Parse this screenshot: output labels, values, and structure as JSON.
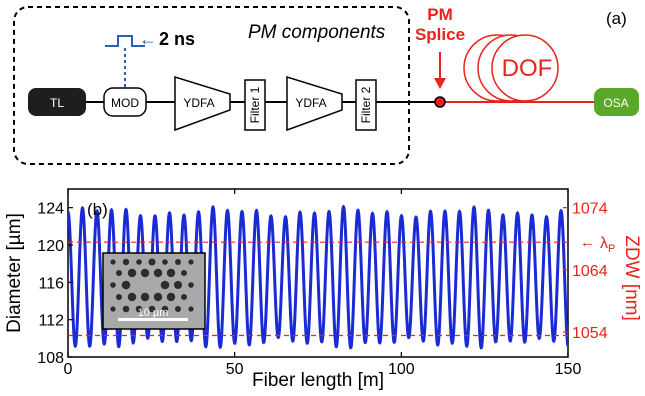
{
  "colors": {
    "black": "#000000",
    "red": "#e8231d",
    "blue": "#1a2bd6",
    "pulse_blue": "#2f5fb5",
    "dark_box": "#1e1e1e",
    "green": "#5aa829",
    "white": "#ffffff"
  },
  "setup": {
    "panel_label": "(a)",
    "group_label": "PM components",
    "pulse_label": "2 ns",
    "splice_label_line1": "PM",
    "splice_label_line2": "Splice",
    "blocks": {
      "tl": "TL",
      "mod": "MOD",
      "ydfa1": "YDFA",
      "filter1": "Filter 1",
      "ydfa2": "YDFA",
      "filter2": "Filter 2",
      "dof": "DOF",
      "osa": "OSA"
    }
  },
  "plot": {
    "panel_label": "(b)",
    "xlabel": "Fiber length [m]",
    "ylabel": "Diameter [µm]",
    "ylabel_right": "ZDW [nm]",
    "lambda_label": "λ",
    "lambda_sub": "P",
    "inset_scale": "10 µm"
  },
  "chart_data": {
    "type": "line",
    "xlabel": "Fiber length [m]",
    "ylabel": "Diameter [µm]",
    "y2label": "ZDW [nm]",
    "xlim": [
      0,
      150
    ],
    "ylim": [
      108,
      126
    ],
    "y2lim": [
      1050,
      1077
    ],
    "xticks": [
      0,
      50,
      100,
      150
    ],
    "yticks": [
      108,
      112,
      116,
      120,
      124
    ],
    "y2ticks": [
      1054,
      1064,
      1074
    ],
    "lambda_p_level": 120.3,
    "zdw_min_level": 110.3,
    "series": [
      {
        "period_m": 4.35,
        "min_diameter": 109.5,
        "max_diameter": 123.5,
        "x_start": 0,
        "x_end": 150
      }
    ]
  }
}
